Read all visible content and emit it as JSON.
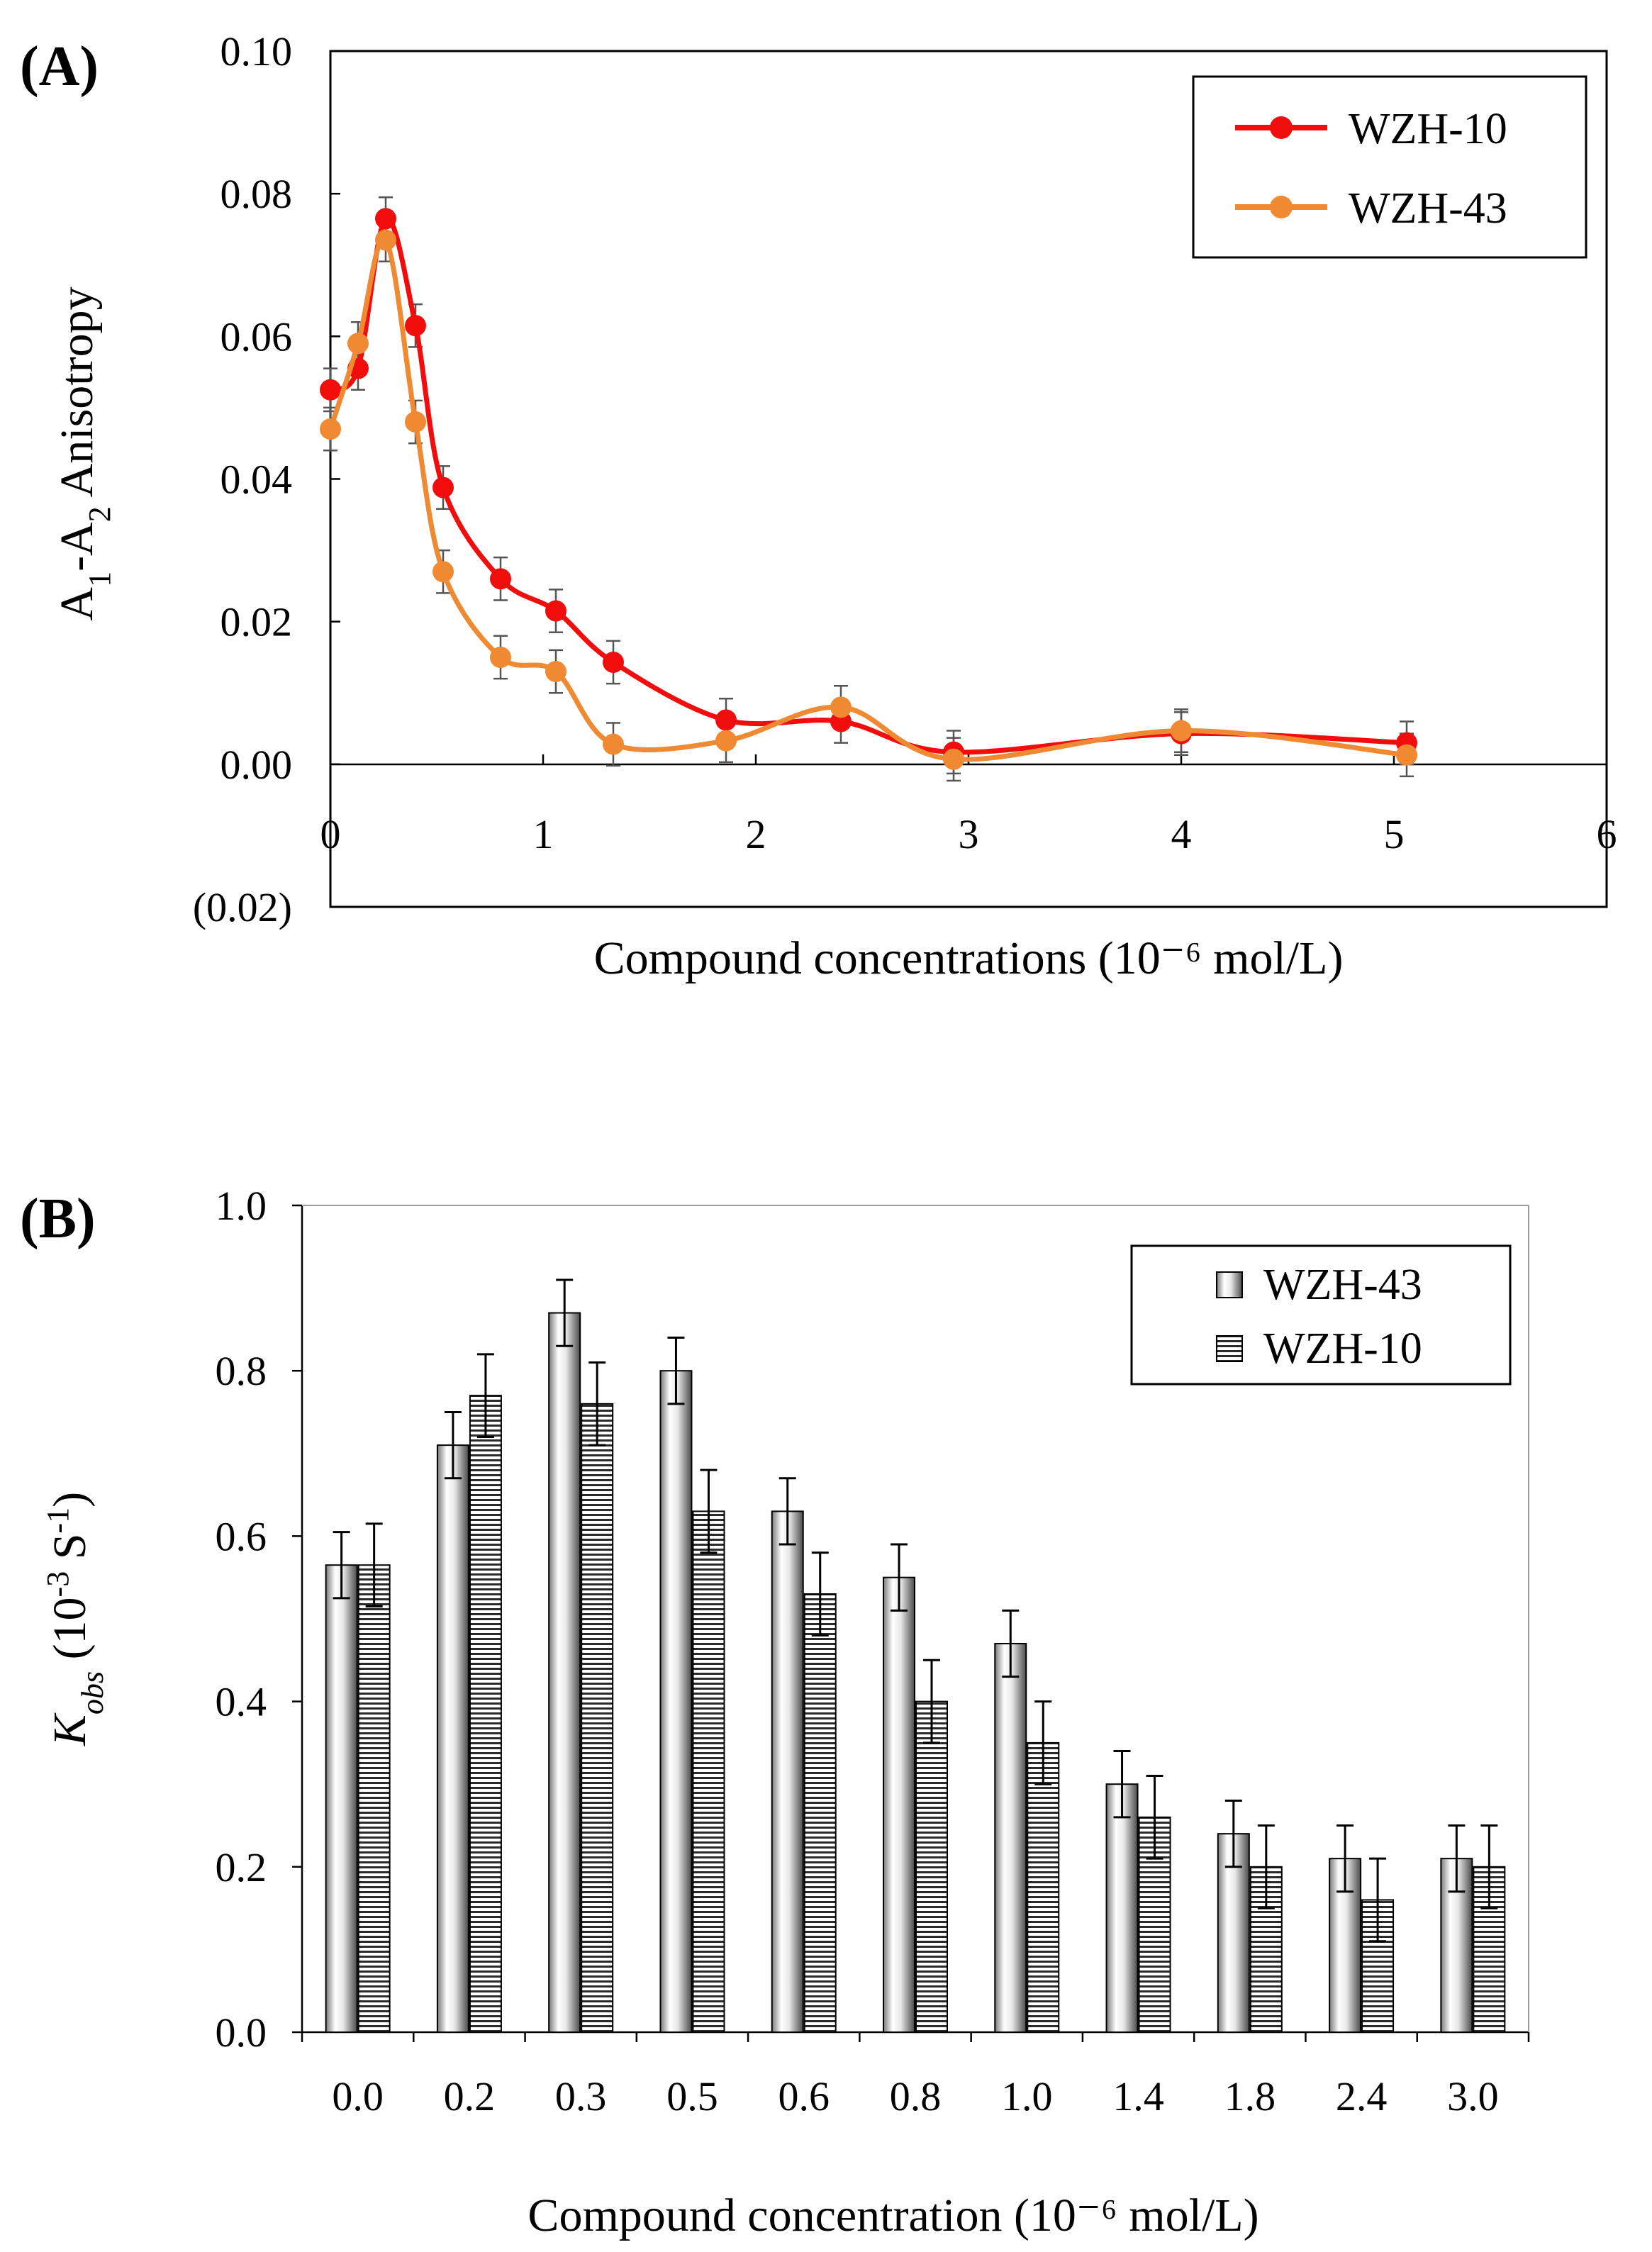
{
  "figure": {
    "panel_a_label": "(A)",
    "panel_b_label": "(B)",
    "colors": {
      "wzh10_line": "#f20d0d",
      "wzh43_line": "#ef8a33",
      "negative_tick": "#ff0000",
      "axis": "#000000"
    }
  },
  "chart_data": [
    {
      "type": "line",
      "panel": "A",
      "xlabel": "Compound concentrations (10⁻⁶ mol/L)",
      "ylabel_main": "A",
      "ylabel_sub1": "1",
      "ylabel_dash": "-A",
      "ylabel_sub2": "2",
      "ylabel_rest": " Anisotropy",
      "xlim": [
        0,
        6
      ],
      "ylim": [
        -0.02,
        0.1
      ],
      "xticks": [
        0,
        1,
        2,
        3,
        4,
        5,
        6
      ],
      "xtick_labels": [
        "0",
        "1",
        "2",
        "3",
        "4",
        "5",
        "6"
      ],
      "yticks": [
        0.1,
        0.08,
        0.06,
        0.04,
        0.02,
        0.0,
        -0.02
      ],
      "ytick_labels": [
        "0.10",
        "0.08",
        "0.06",
        "0.04",
        "0.02",
        "0.00",
        "(0.02)"
      ],
      "legend_position": "top-right",
      "series": [
        {
          "name": "WZH-10",
          "x": [
            0.0,
            0.13,
            0.26,
            0.4,
            0.53,
            0.8,
            1.06,
            1.33,
            1.86,
            2.4,
            2.93,
            4.0,
            5.06
          ],
          "y": [
            0.0525,
            0.0555,
            0.0765,
            0.0615,
            0.0388,
            0.026,
            0.0215,
            0.0143,
            0.0062,
            0.006,
            0.0017,
            0.0043,
            0.003
          ],
          "err": [
            0.003,
            0.003,
            0.003,
            0.003,
            0.003,
            0.003,
            0.003,
            0.003,
            0.003,
            0.003,
            0.003,
            0.003,
            0.003
          ]
        },
        {
          "name": "WZH-43",
          "x": [
            0.0,
            0.13,
            0.26,
            0.4,
            0.53,
            0.8,
            1.06,
            1.33,
            1.86,
            2.4,
            2.93,
            4.0,
            5.06
          ],
          "y": [
            0.047,
            0.059,
            0.0735,
            0.048,
            0.027,
            0.015,
            0.013,
            0.0028,
            0.0033,
            0.008,
            0.0007,
            0.0047,
            0.0013
          ],
          "err": [
            0.003,
            0.003,
            0.003,
            0.003,
            0.003,
            0.003,
            0.003,
            0.003,
            0.003,
            0.003,
            0.003,
            0.003,
            0.003
          ]
        }
      ]
    },
    {
      "type": "bar",
      "panel": "B",
      "xlabel": "Compound concentration (10⁻⁶ mol/L)",
      "ylabel_main": "K",
      "ylabel_sub": "obs",
      "ylabel_rest_open": " (10",
      "ylabel_sup1": "-3",
      "ylabel_rest_mid": " S",
      "ylabel_sup2": "-1",
      "ylabel_rest_close": ")",
      "ylim": [
        0,
        1.0
      ],
      "yticks": [
        1.0,
        0.8,
        0.6,
        0.4,
        0.2,
        0.0
      ],
      "ytick_labels": [
        "1.0",
        "0.8",
        "0.6",
        "0.4",
        "0.2",
        "0.0"
      ],
      "categories": [
        "0.0",
        "0.2",
        "0.3",
        "0.5",
        "0.6",
        "0.8",
        "1.0",
        "1.4",
        "1.8",
        "2.4",
        "3.0"
      ],
      "legend_position": "top-right",
      "series": [
        {
          "name": "WZH-43",
          "values": [
            0.565,
            0.71,
            0.87,
            0.8,
            0.63,
            0.55,
            0.47,
            0.3,
            0.24,
            0.21,
            0.21
          ],
          "err": [
            0.04,
            0.04,
            0.04,
            0.04,
            0.04,
            0.04,
            0.04,
            0.04,
            0.04,
            0.04,
            0.04
          ]
        },
        {
          "name": "WZH-10",
          "values": [
            0.565,
            0.77,
            0.76,
            0.63,
            0.53,
            0.4,
            0.35,
            0.26,
            0.2,
            0.16,
            0.2
          ],
          "err": [
            0.05,
            0.05,
            0.05,
            0.05,
            0.05,
            0.05,
            0.05,
            0.05,
            0.05,
            0.05,
            0.05
          ]
        }
      ]
    }
  ]
}
